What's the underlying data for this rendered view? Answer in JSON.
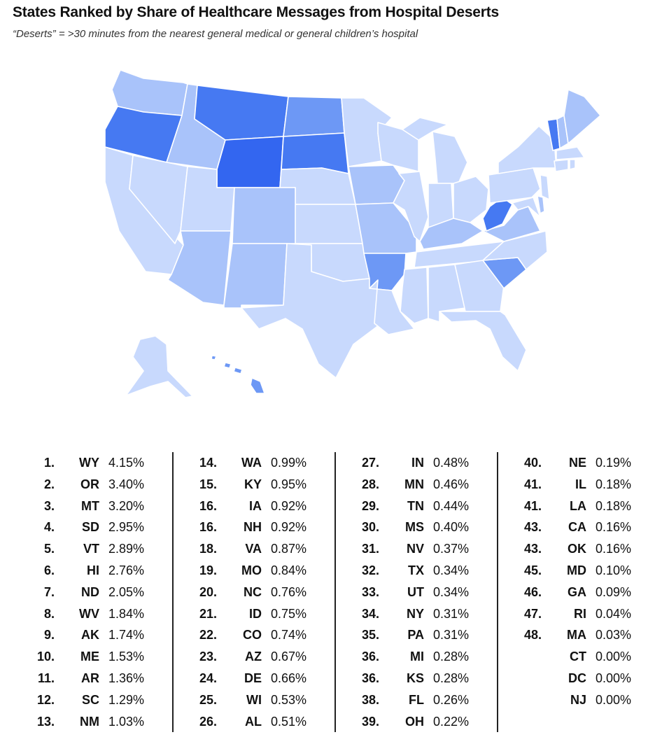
{
  "title": "States Ranked by Share of Healthcare Messages from Hospital Deserts",
  "subtitle": "“Deserts” = >30 minutes from the nearest general medical or general children’s hospital",
  "colors": {
    "darkest": "#3366f0",
    "dark": "#4679f2",
    "mid": "#6d98f5",
    "light": "#a9c3fa",
    "lightest": "#c8d9fd",
    "border": "#ffffff"
  },
  "columns": [
    [
      {
        "rank": "1.",
        "state": "WY",
        "pct": "4.15%"
      },
      {
        "rank": "2.",
        "state": "OR",
        "pct": "3.40%"
      },
      {
        "rank": "3.",
        "state": "MT",
        "pct": "3.20%"
      },
      {
        "rank": "4.",
        "state": "SD",
        "pct": "2.95%"
      },
      {
        "rank": "5.",
        "state": "VT",
        "pct": "2.89%"
      },
      {
        "rank": "6.",
        "state": "HI",
        "pct": "2.76%"
      },
      {
        "rank": "7.",
        "state": "ND",
        "pct": "2.05%"
      },
      {
        "rank": "8.",
        "state": "WV",
        "pct": "1.84%"
      },
      {
        "rank": "9.",
        "state": "AK",
        "pct": "1.74%"
      },
      {
        "rank": "10.",
        "state": "ME",
        "pct": "1.53%"
      },
      {
        "rank": "11.",
        "state": "AR",
        "pct": "1.36%"
      },
      {
        "rank": "12.",
        "state": "SC",
        "pct": "1.29%"
      },
      {
        "rank": "13.",
        "state": "NM",
        "pct": "1.03%"
      }
    ],
    [
      {
        "rank": "14.",
        "state": "WA",
        "pct": "0.99%"
      },
      {
        "rank": "15.",
        "state": "KY",
        "pct": "0.95%"
      },
      {
        "rank": "16.",
        "state": "IA",
        "pct": "0.92%"
      },
      {
        "rank": "16.",
        "state": "NH",
        "pct": "0.92%"
      },
      {
        "rank": "18.",
        "state": "VA",
        "pct": "0.87%"
      },
      {
        "rank": "19.",
        "state": "MO",
        "pct": "0.84%"
      },
      {
        "rank": "20.",
        "state": "NC",
        "pct": "0.76%"
      },
      {
        "rank": "21.",
        "state": "ID",
        "pct": "0.75%"
      },
      {
        "rank": "22.",
        "state": "CO",
        "pct": "0.74%"
      },
      {
        "rank": "23.",
        "state": "AZ",
        "pct": "0.67%"
      },
      {
        "rank": "24.",
        "state": "DE",
        "pct": "0.66%"
      },
      {
        "rank": "25.",
        "state": "WI",
        "pct": "0.53%"
      },
      {
        "rank": "26.",
        "state": "AL",
        "pct": "0.51%"
      }
    ],
    [
      {
        "rank": "27.",
        "state": "IN",
        "pct": "0.48%"
      },
      {
        "rank": "28.",
        "state": "MN",
        "pct": "0.46%"
      },
      {
        "rank": "29.",
        "state": "TN",
        "pct": "0.44%"
      },
      {
        "rank": "30.",
        "state": "MS",
        "pct": "0.40%"
      },
      {
        "rank": "31.",
        "state": "NV",
        "pct": "0.37%"
      },
      {
        "rank": "32.",
        "state": "TX",
        "pct": "0.34%"
      },
      {
        "rank": "33.",
        "state": "UT",
        "pct": "0.34%"
      },
      {
        "rank": "34.",
        "state": "NY",
        "pct": "0.31%"
      },
      {
        "rank": "35.",
        "state": "PA",
        "pct": "0.31%"
      },
      {
        "rank": "36.",
        "state": "MI",
        "pct": "0.28%"
      },
      {
        "rank": "36.",
        "state": "KS",
        "pct": "0.28%"
      },
      {
        "rank": "38.",
        "state": "FL",
        "pct": "0.26%"
      },
      {
        "rank": "39.",
        "state": "OH",
        "pct": "0.22%"
      }
    ],
    [
      {
        "rank": "40.",
        "state": "NE",
        "pct": "0.19%"
      },
      {
        "rank": "41.",
        "state": "IL",
        "pct": "0.18%"
      },
      {
        "rank": "41.",
        "state": "LA",
        "pct": "0.18%"
      },
      {
        "rank": "43.",
        "state": "CA",
        "pct": "0.16%"
      },
      {
        "rank": "43.",
        "state": "OK",
        "pct": "0.16%"
      },
      {
        "rank": "45.",
        "state": "MD",
        "pct": "0.10%"
      },
      {
        "rank": "46.",
        "state": "GA",
        "pct": "0.09%"
      },
      {
        "rank": "47.",
        "state": "RI",
        "pct": "0.04%"
      },
      {
        "rank": "48.",
        "state": "MA",
        "pct": "0.03%"
      },
      {
        "rank": "",
        "state": "CT",
        "pct": "0.00%"
      },
      {
        "rank": "",
        "state": "DC",
        "pct": "0.00%"
      },
      {
        "rank": "",
        "state": "NJ",
        "pct": "0.00%"
      }
    ]
  ]
}
